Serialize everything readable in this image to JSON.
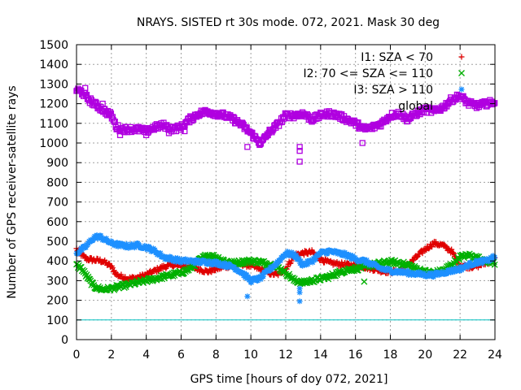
{
  "chart_data": {
    "type": "scatter",
    "title": "NRAYS. SISTED rt 30s mode. 072, 2021. Mask 30 deg",
    "xlabel": "GPS time [hours of doy 072, 2021]",
    "ylabel": "Number of GPS receiver-satellite rays",
    "xlim": [
      0,
      24
    ],
    "ylim": [
      0,
      1500
    ],
    "xticks": [
      0,
      2,
      4,
      6,
      8,
      10,
      12,
      14,
      16,
      18,
      20,
      22,
      24
    ],
    "yticks": [
      0,
      100,
      200,
      300,
      400,
      500,
      600,
      700,
      800,
      900,
      1000,
      1100,
      1200,
      1300,
      1400,
      1500
    ],
    "grid": true,
    "legend_position": "top-right",
    "reference_line": {
      "y": 100,
      "color": "#00c0c0"
    },
    "series": [
      {
        "name": "I1: SZA < 70",
        "marker": "+",
        "color": "#e00000",
        "x": [
          0,
          0.3,
          0.6,
          1,
          1.5,
          2,
          2.3,
          2.6,
          3,
          3.5,
          4,
          4.5,
          5,
          5.5,
          6,
          6.5,
          7,
          7.5,
          8,
          8.5,
          9,
          9.5,
          10,
          10.5,
          11,
          11.5,
          12,
          12.5,
          13,
          13.5,
          14,
          14.5,
          15,
          15.5,
          16,
          16.5,
          17,
          17.5,
          18,
          18.5,
          19,
          19.5,
          20,
          20.5,
          21,
          21.5,
          22,
          22.5,
          23,
          23.5,
          24
        ],
        "y": [
          460,
          430,
          410,
          405,
          400,
          370,
          330,
          320,
          310,
          315,
          330,
          350,
          370,
          380,
          375,
          370,
          360,
          345,
          360,
          370,
          380,
          385,
          375,
          360,
          340,
          330,
          360,
          430,
          440,
          445,
          410,
          390,
          385,
          380,
          380,
          370,
          360,
          350,
          345,
          350,
          380,
          420,
          460,
          490,
          480,
          450,
          380,
          370,
          375,
          390,
          410
        ]
      },
      {
        "name": "I2: 70 <= SZA <= 110",
        "marker": "x",
        "color": "#00b000",
        "x": [
          0,
          0.3,
          0.6,
          1,
          1.5,
          2,
          2.5,
          3,
          3.5,
          4,
          4.5,
          5,
          5.5,
          6,
          6.5,
          7,
          7.5,
          8,
          8.5,
          9,
          9.5,
          10,
          10.5,
          11,
          11.5,
          12,
          12.5,
          13,
          13.5,
          14,
          14.5,
          15,
          15.5,
          16,
          16.5,
          17,
          17.5,
          18,
          18.5,
          19,
          19.5,
          20,
          20.5,
          21,
          21.5,
          22,
          22.5,
          23,
          23.5,
          24
        ],
        "y": [
          380,
          360,
          320,
          270,
          255,
          260,
          270,
          280,
          290,
          300,
          310,
          320,
          330,
          340,
          360,
          400,
          430,
          420,
          400,
          390,
          395,
          400,
          395,
          385,
          370,
          340,
          300,
          290,
          300,
          310,
          320,
          340,
          355,
          360,
          370,
          380,
          390,
          395,
          390,
          380,
          360,
          345,
          340,
          350,
          380,
          420,
          430,
          415,
          400,
          390
        ]
      },
      {
        "name": "I3: SZA > 110",
        "marker": "*",
        "color": "#1e90ff",
        "x": [
          0,
          0.5,
          1,
          1.3,
          1.6,
          2,
          2.5,
          3,
          3.5,
          4,
          4.5,
          5,
          5.5,
          6,
          6.5,
          7,
          7.5,
          8,
          8.5,
          9,
          9.5,
          10,
          10.5,
          11,
          11.5,
          12,
          12.5,
          13,
          13.5,
          14,
          14.5,
          15,
          15.5,
          16,
          16.5,
          17,
          17.5,
          18,
          18.5,
          19,
          19.5,
          20,
          20.5,
          21,
          21.5,
          22,
          22.5,
          23,
          23.5,
          24
        ],
        "y": [
          440,
          470,
          520,
          525,
          510,
          490,
          480,
          475,
          480,
          470,
          450,
          420,
          410,
          400,
          400,
          395,
          395,
          390,
          380,
          370,
          340,
          300,
          310,
          350,
          390,
          440,
          430,
          380,
          400,
          440,
          450,
          440,
          430,
          410,
          400,
          380,
          360,
          350,
          345,
          340,
          335,
          330,
          330,
          340,
          350,
          360,
          380,
          395,
          400,
          420
        ]
      },
      {
        "name": "global",
        "marker": "square",
        "color": "#b000e0",
        "x": [
          0,
          0.3,
          0.6,
          1,
          1.5,
          2,
          2.3,
          2.6,
          3,
          3.5,
          4,
          4.5,
          5,
          5.5,
          6,
          6.5,
          7,
          7.5,
          8,
          8.5,
          9,
          9.5,
          10,
          10.3,
          10.6,
          11,
          11.5,
          12,
          12.5,
          13,
          13.5,
          14,
          14.5,
          15,
          15.5,
          16,
          16.5,
          17,
          17.5,
          18,
          18.5,
          19,
          19.5,
          20,
          20.5,
          21,
          21.5,
          22,
          22.5,
          23,
          23.5,
          24
        ],
        "y": [
          1270,
          1260,
          1230,
          1200,
          1170,
          1140,
          1080,
          1070,
          1070,
          1070,
          1060,
          1080,
          1090,
          1070,
          1080,
          1120,
          1150,
          1160,
          1150,
          1140,
          1120,
          1090,
          1050,
          1020,
          1000,
          1050,
          1090,
          1140,
          1140,
          1150,
          1120,
          1140,
          1150,
          1140,
          1120,
          1100,
          1070,
          1080,
          1100,
          1140,
          1150,
          1120,
          1150,
          1170,
          1160,
          1180,
          1220,
          1240,
          1200,
          1190,
          1200,
          1210
        ]
      }
    ],
    "outliers": [
      {
        "series": "global",
        "x": 0.5,
        "y": 1280
      },
      {
        "series": "global",
        "x": 1.5,
        "y": 1200
      },
      {
        "series": "global",
        "x": 2.5,
        "y": 1040
      },
      {
        "series": "global",
        "x": 4,
        "y": 1040
      },
      {
        "series": "global",
        "x": 5.3,
        "y": 1050
      },
      {
        "series": "global",
        "x": 6.2,
        "y": 1060
      },
      {
        "series": "global",
        "x": 9.8,
        "y": 980
      },
      {
        "series": "global",
        "x": 10.5,
        "y": 990
      },
      {
        "series": "global",
        "x": 12.8,
        "y": 980
      },
      {
        "series": "global",
        "x": 12.8,
        "y": 960
      },
      {
        "series": "global",
        "x": 12.8,
        "y": 905
      },
      {
        "series": "global",
        "x": 16.4,
        "y": 1000
      },
      {
        "series": "I3: SZA > 110",
        "x": 9.8,
        "y": 220
      },
      {
        "series": "I3: SZA > 110",
        "x": 12.8,
        "y": 260
      },
      {
        "series": "I3: SZA > 110",
        "x": 12.8,
        "y": 240
      },
      {
        "series": "I3: SZA > 110",
        "x": 12.8,
        "y": 195
      },
      {
        "series": "I2: 70 <= SZA <= 110",
        "x": 16.5,
        "y": 295
      }
    ]
  }
}
